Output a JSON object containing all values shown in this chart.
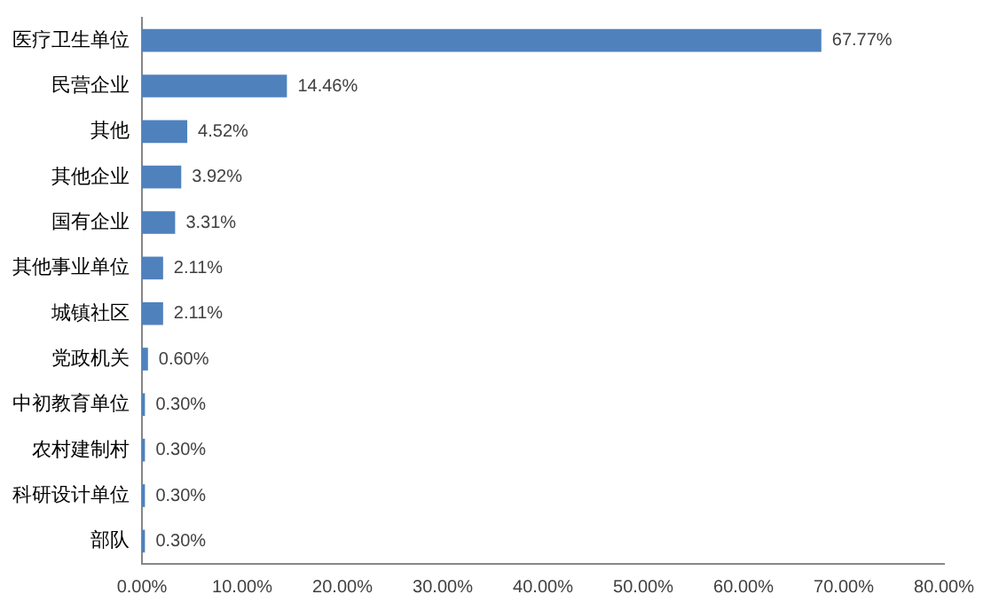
{
  "chart_data": {
    "type": "bar",
    "orientation": "horizontal",
    "categories": [
      "医疗卫生单位",
      "民营企业",
      "其他",
      "其他企业",
      "国有企业",
      "其他事业单位",
      "城镇社区",
      "党政机关",
      "中初教育单位",
      "农村建制村",
      "科研设计单位",
      "部队"
    ],
    "values": [
      67.77,
      14.46,
      4.52,
      3.92,
      3.31,
      2.11,
      2.11,
      0.6,
      0.3,
      0.3,
      0.3,
      0.3
    ],
    "value_labels": [
      "67.77%",
      "14.46%",
      "4.52%",
      "3.92%",
      "3.31%",
      "2.11%",
      "2.11%",
      "0.60%",
      "0.30%",
      "0.30%",
      "0.30%",
      "0.30%"
    ],
    "color": "#4f81bd",
    "xlim": [
      0,
      80
    ],
    "xticks": [
      {
        "value": 0,
        "label": "0.00%"
      },
      {
        "value": 10,
        "label": "10.00%"
      },
      {
        "value": 20,
        "label": "20.00%"
      },
      {
        "value": 30,
        "label": "30.00%"
      },
      {
        "value": 40,
        "label": "40.00%"
      },
      {
        "value": 50,
        "label": "50.00%"
      },
      {
        "value": 60,
        "label": "60.00%"
      },
      {
        "value": 70,
        "label": "70.00%"
      },
      {
        "value": 80,
        "label": "80.00%"
      }
    ],
    "grid": false,
    "legend": false
  }
}
